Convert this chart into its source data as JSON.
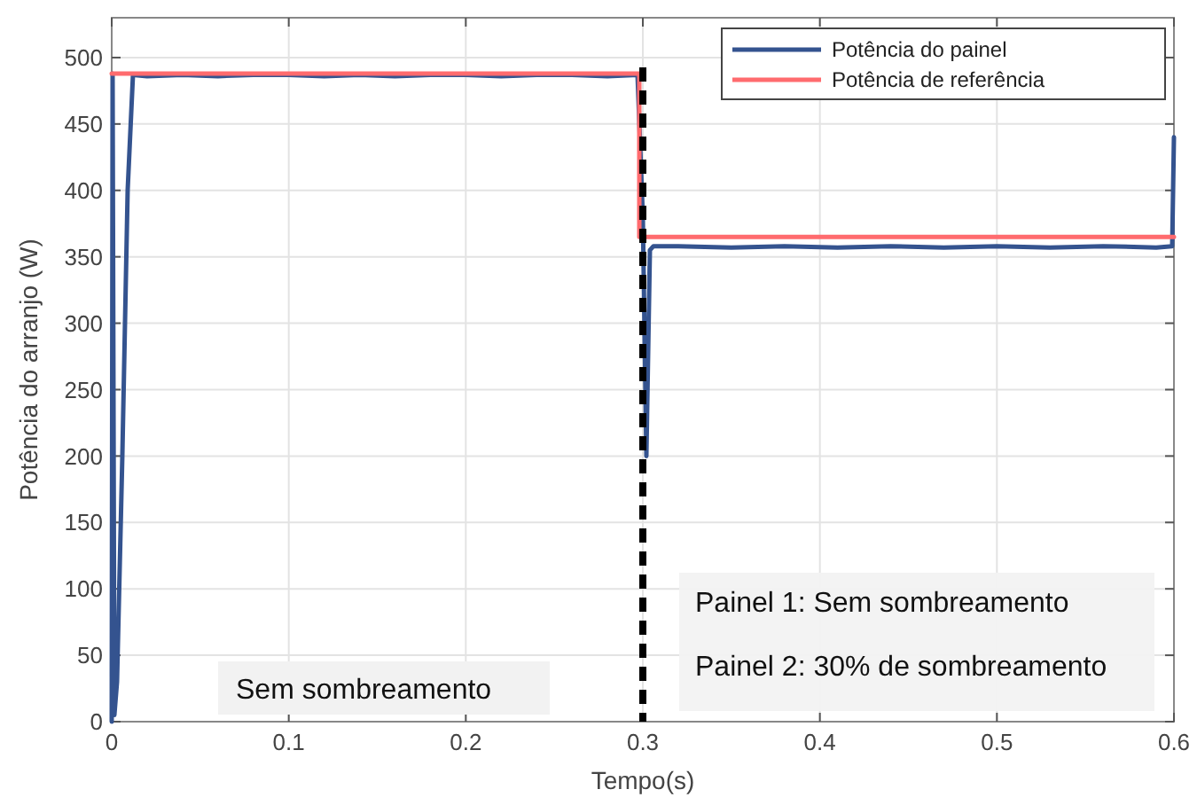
{
  "chart_data": {
    "type": "line",
    "xlabel": "Tempo(s)",
    "ylabel": "Potência do arranjo (W)",
    "xlim": [
      0,
      0.6
    ],
    "ylim": [
      0,
      530
    ],
    "xticks": [
      0,
      0.1,
      0.2,
      0.3,
      0.4,
      0.5,
      0.6
    ],
    "yticks": [
      0,
      50,
      100,
      150,
      200,
      250,
      300,
      350,
      400,
      450,
      500
    ],
    "grid": true,
    "legend": "top right",
    "line_style": "solid",
    "marker": "none",
    "series": [
      {
        "name": "Potência do painel",
        "color": "#34538f",
        "x": [
          0,
          0.0005,
          0.0015,
          0.003,
          0.006,
          0.009,
          0.012,
          0.02,
          0.04,
          0.06,
          0.08,
          0.1,
          0.12,
          0.14,
          0.16,
          0.18,
          0.2,
          0.22,
          0.24,
          0.26,
          0.28,
          0.297,
          0.3,
          0.302,
          0.304,
          0.306,
          0.32,
          0.35,
          0.38,
          0.41,
          0.44,
          0.47,
          0.5,
          0.53,
          0.56,
          0.59,
          0.599,
          0.6
        ],
        "values": [
          0,
          488,
          5,
          30,
          200,
          400,
          487,
          486,
          487,
          486,
          487,
          487,
          486,
          487,
          486,
          487,
          487,
          486,
          487,
          487,
          486,
          487,
          380,
          200,
          355,
          358,
          358,
          357,
          358,
          357,
          358,
          357,
          358,
          357,
          358,
          357,
          358,
          440
        ]
      },
      {
        "name": "Potência de referência",
        "color": "#ff6b6e",
        "x": [
          0,
          0.298,
          0.298,
          0.6
        ],
        "values": [
          488,
          488,
          365,
          365
        ]
      }
    ],
    "ref_lines": [
      {
        "axis": "x",
        "value": 0.3,
        "color": "#000000",
        "line_style": "dashed"
      }
    ],
    "annotations": [
      "Sem sombreamento",
      "Painel 1: Sem sombreamento",
      "Painel 2: 30% de sombreamento"
    ]
  }
}
